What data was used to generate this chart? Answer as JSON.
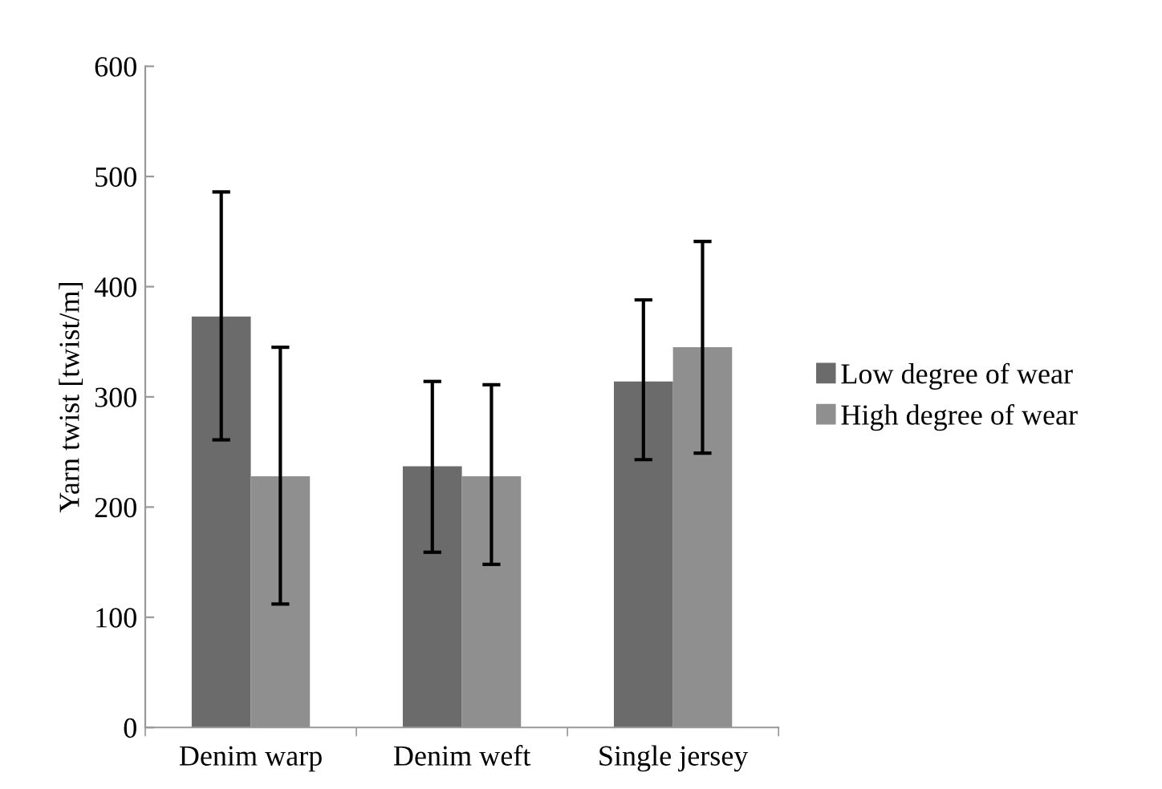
{
  "chart_data": {
    "type": "bar",
    "ylabel": "Yarn twist [twist/m]",
    "categories": [
      "Denim warp",
      "Denim weft",
      "Single jersey"
    ],
    "series": [
      {
        "name": "Low degree of wear",
        "color": "#6b6b6b",
        "values": [
          373,
          237,
          314
        ],
        "errors": [
          [
            261,
            486
          ],
          [
            159,
            314
          ],
          [
            243,
            388
          ]
        ]
      },
      {
        "name": "High degree of wear",
        "color": "#8f8f8f",
        "values": [
          228,
          228,
          345
        ],
        "errors": [
          [
            112,
            345
          ],
          [
            148,
            311
          ],
          [
            249,
            441
          ]
        ]
      }
    ],
    "ylim": [
      0,
      600
    ],
    "yticks": [
      0,
      100,
      200,
      300,
      400,
      500,
      600
    ],
    "grid": false,
    "legend": "right"
  }
}
